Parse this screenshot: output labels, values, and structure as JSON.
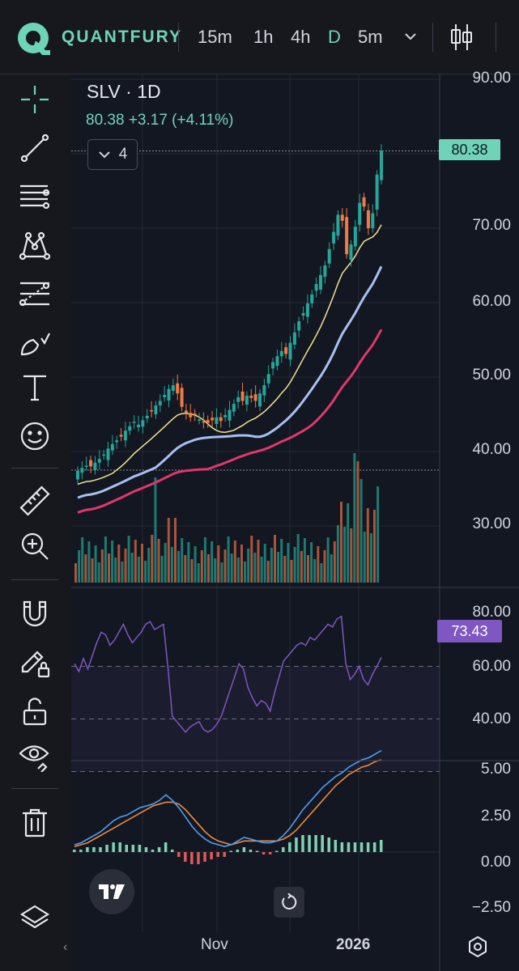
{
  "brand": {
    "name": "QUANTFURY",
    "accent": "#6fd3b8"
  },
  "timeframes": [
    {
      "label": "15m",
      "active": false
    },
    {
      "label": "1h",
      "active": false
    },
    {
      "label": "4h",
      "active": false
    },
    {
      "label": "D",
      "active": true
    },
    {
      "label": "5m",
      "active": false
    }
  ],
  "toolbar_icons": [
    "crosshair-icon",
    "trend-line-icon",
    "fib-retracement-icon",
    "pattern-icon",
    "prediction-icon",
    "brush-icon",
    "text-icon",
    "emoji-icon",
    "ruler-icon",
    "zoom-in-icon",
    "magnet-icon",
    "lock-drawing-icon",
    "unlock-icon",
    "eye-icon",
    "trash-icon",
    "layers-icon"
  ],
  "symbol": {
    "title": "SLV · 1D",
    "price_line": "80.38  +3.17 (+4.11%)",
    "last_price": "80.38"
  },
  "indicators_toggle": {
    "count": "4"
  },
  "price_axis": [
    "90.00",
    "70.00",
    "60.00",
    "50.00",
    "40.00",
    "30.00"
  ],
  "rsi": {
    "value": "73.43",
    "axis": [
      "80.00",
      "60.00",
      "40.00"
    ],
    "line_color": "#7e57c2"
  },
  "macd": {
    "axis": [
      "5.00",
      "2.50",
      "0.00",
      "−2.50"
    ]
  },
  "x_axis": {
    "labels": [
      "Nov",
      "2026"
    ]
  },
  "colors": {
    "up": "#26a69a",
    "down": "#ef7b45",
    "ma_fast": "#f0e68c",
    "ma_mid": "#a8c0f0",
    "ma_slow": "#e0386a",
    "macd_line": "#4d9ef7",
    "signal_line": "#f08a3c"
  },
  "chart_data": [
    {
      "type": "candlestick",
      "title": "SLV · 1D",
      "y_range": [
        23,
        100
      ],
      "close_path": [
        37.4,
        37.8,
        38.1,
        38.0,
        38.5,
        39.0,
        39.6,
        40.4,
        41.0,
        41.5,
        42.0,
        42.8,
        43.4,
        44.0,
        43.6,
        44.2,
        44.8,
        45.5,
        46.2,
        46.8,
        47.6,
        48.4,
        48.9,
        47.8,
        46.0,
        45.2,
        44.6,
        45.0,
        44.3,
        44.0,
        43.8,
        44.2,
        44.6,
        44.1,
        44.9,
        45.6,
        46.4,
        47.3,
        46.8,
        47.5,
        47.2,
        46.8,
        47.8,
        48.9,
        50.4,
        52.0,
        52.8,
        53.5,
        53.1,
        54.6,
        56.0,
        57.5,
        58.6,
        59.9,
        61.1,
        62.5,
        63.7,
        65.0,
        67.2,
        69.5,
        71.8,
        71.0,
        66.5,
        67.8,
        70.2,
        73.4,
        72.9,
        70.0,
        72.0,
        77.2,
        80.38
      ],
      "ma_fast": [
        35.0,
        80.38,
        67.8
      ],
      "ma_mid": [
        34.0,
        59.0
      ],
      "ma_slow": [
        33.0,
        51.5
      ],
      "last_price": 80.38
    },
    {
      "type": "bar",
      "title": "Volume",
      "note": "unlabeled relative heights"
    },
    {
      "type": "line",
      "title": "RSI",
      "y_range": [
        30,
        90
      ],
      "levels": [
        70,
        50,
        30
      ],
      "values": [
        71,
        68,
        73,
        69,
        74,
        79,
        83,
        82,
        78,
        80,
        83,
        86,
        82,
        79,
        81,
        83,
        86,
        87,
        84,
        85,
        86,
        70,
        51,
        49,
        47,
        45,
        47,
        48,
        49,
        46,
        45,
        46,
        48,
        51,
        56,
        61,
        66,
        71,
        69,
        62,
        58,
        55,
        57,
        56,
        53,
        60,
        66,
        72,
        74,
        76,
        78,
        79,
        78,
        81,
        80,
        82,
        84,
        86,
        85,
        88,
        89,
        71,
        65,
        67,
        70,
        65,
        63,
        67,
        70,
        73.43
      ],
      "last": 73.43
    },
    {
      "type": "line",
      "title": "MACD",
      "y_range": [
        -3.5,
        5.5
      ],
      "series": [
        {
          "name": "",
          "values": [
            0.4,
            0.5,
            0.7,
            0.9,
            1.1,
            1.4,
            1.7,
            1.9,
            2.0,
            2.2,
            2.4,
            2.5,
            2.6,
            2.8,
            3.1,
            2.8,
            2.4,
            1.9,
            1.4,
            1.0,
            0.7,
            0.5,
            0.4,
            0.3,
            0.4,
            0.6,
            0.8,
            0.7,
            0.6,
            0.5,
            0.5,
            0.6,
            0.9,
            1.3,
            1.8,
            2.3,
            2.7,
            3.1,
            3.5,
            3.8,
            4.1,
            4.3,
            4.6,
            4.8,
            5.0,
            5.1,
            5.3,
            5.5
          ]
        },
        {
          "name": "",
          "values": [
            0.3,
            0.4,
            0.5,
            0.7,
            0.9,
            1.1,
            1.3,
            1.5,
            1.7,
            1.9,
            2.1,
            2.3,
            2.5,
            2.6,
            2.7,
            2.7,
            2.6,
            2.3,
            1.9,
            1.5,
            1.1,
            0.8,
            0.6,
            0.5,
            0.4,
            0.5,
            0.6,
            0.6,
            0.6,
            0.6,
            0.6,
            0.6,
            0.7,
            0.9,
            1.2,
            1.6,
            2.0,
            2.4,
            2.8,
            3.2,
            3.6,
            3.9,
            4.2,
            4.4,
            4.6,
            4.7,
            4.9,
            5.0
          ]
        }
      ]
    }
  ]
}
